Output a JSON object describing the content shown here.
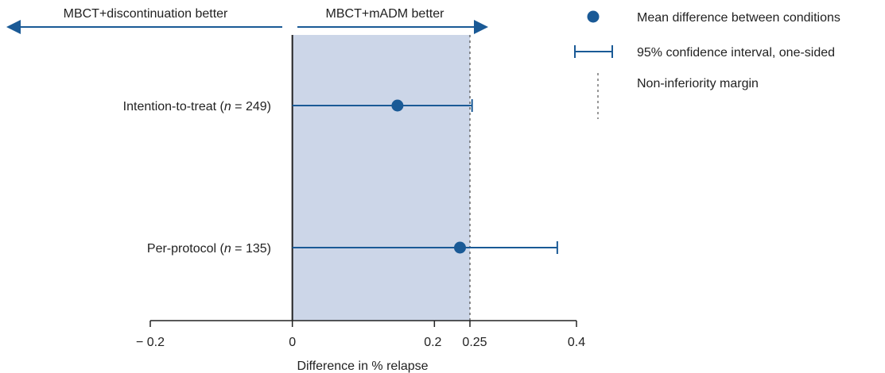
{
  "chart_data": {
    "type": "forest",
    "xlabel": "Difference in % relapse",
    "xlim": [
      -0.2,
      0.4
    ],
    "ticks": [
      {
        "value": -0.2,
        "label": "− 0.2"
      },
      {
        "value": 0,
        "label": "0"
      },
      {
        "value": 0.2,
        "label": "0.2"
      },
      {
        "value": 0.25,
        "label": "0.25"
      },
      {
        "value": 0.4,
        "label": "0.4"
      }
    ],
    "rows": [
      {
        "label_prefix": "Intention-to-treat (",
        "label_n": "n",
        "label_suffix": " = 249)",
        "mean": 0.148,
        "ci_lower": 0,
        "ci_upper": 0.253
      },
      {
        "label_prefix": "Per-protocol (",
        "label_n": "n",
        "label_suffix": " = 135)",
        "mean": 0.236,
        "ci_lower": 0,
        "ci_upper": 0.373
      }
    ],
    "noninferiority_margin": 0.25,
    "shaded_region": [
      0,
      0.25
    ],
    "direction_left": "MBCT+discontinuation better",
    "direction_right": "MBCT+mADM better",
    "legend": [
      {
        "symbol": "dot",
        "label": "Mean difference between conditions"
      },
      {
        "symbol": "ci",
        "label": "95% confidence interval, one-sided"
      },
      {
        "symbol": "dashed",
        "label": "Non-inferiority margin"
      }
    ],
    "colors": {
      "series": "#1a5a96",
      "shade": "#ccd6e8",
      "axis": "#222222",
      "margin": "#555555"
    }
  }
}
